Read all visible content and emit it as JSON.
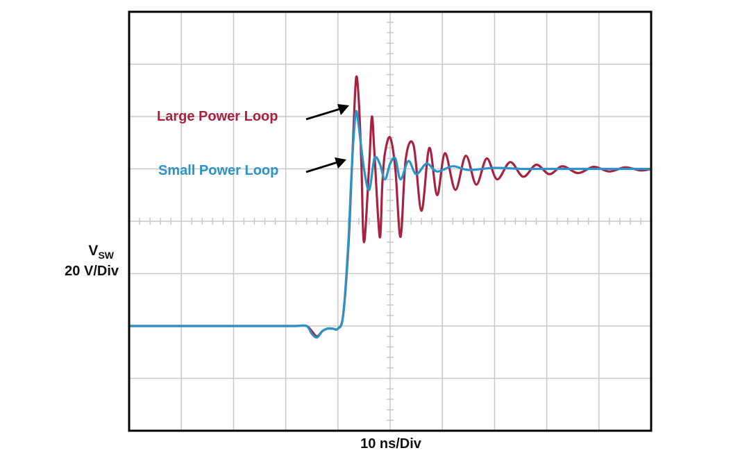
{
  "chart_data": {
    "type": "line",
    "xlabel": "10 ns/Div",
    "ylabel_main": "V",
    "ylabel_sub": "SW",
    "ylabel_scale": "20 V/Div",
    "grid": true,
    "x_divisions": 10,
    "y_divisions": 8,
    "x_unit": "div",
    "y_unit": "div",
    "xlim": [
      0,
      10
    ],
    "ylim": [
      -4,
      4
    ],
    "colors": {
      "large": "#a8223f",
      "small": "#2a93c8",
      "frame": "#000000",
      "grid": "#c8c8c8"
    },
    "series": [
      {
        "name": "Large Power Loop",
        "color": "#a8223f",
        "x": [
          0,
          0.5,
          1.0,
          1.5,
          2.0,
          2.5,
          3.0,
          3.2,
          3.4,
          3.5,
          3.6,
          3.7,
          3.8,
          3.9,
          4.0,
          4.1,
          4.2,
          4.25,
          4.3,
          4.35,
          4.4,
          4.45,
          4.5,
          4.6,
          4.65,
          4.7,
          4.8,
          4.85,
          4.9,
          5.0,
          5.1,
          5.2,
          5.3,
          5.45,
          5.6,
          5.75,
          5.9,
          6.05,
          6.25,
          6.45,
          6.65,
          6.85,
          7.05,
          7.3,
          7.55,
          7.8,
          8.05,
          8.3,
          8.6,
          8.9,
          9.2,
          9.5,
          9.8,
          10.0
        ],
        "y": [
          -2.0,
          -2.0,
          -2.0,
          -2.0,
          -2.0,
          -2.0,
          -2.0,
          -2.0,
          -2.0,
          -2.1,
          -2.2,
          -2.1,
          -2.05,
          -2.05,
          -2.05,
          -1.8,
          -0.5,
          0.6,
          1.8,
          2.75,
          2.3,
          1.1,
          -0.4,
          1.1,
          2.0,
          1.3,
          -0.3,
          0.7,
          1.3,
          1.6,
          1.0,
          -0.3,
          1.2,
          1.45,
          0.2,
          1.4,
          0.5,
          1.3,
          0.6,
          1.25,
          0.7,
          1.2,
          0.8,
          1.13,
          0.85,
          1.08,
          0.9,
          1.05,
          0.92,
          1.04,
          0.95,
          1.03,
          0.97,
          1.0
        ]
      },
      {
        "name": "Small Power Loop",
        "color": "#2a93c8",
        "x": [
          0,
          0.5,
          1.0,
          1.5,
          2.0,
          2.5,
          3.0,
          3.2,
          3.4,
          3.5,
          3.6,
          3.7,
          3.8,
          3.9,
          4.0,
          4.1,
          4.2,
          4.25,
          4.3,
          4.35,
          4.4,
          4.5,
          4.6,
          4.7,
          4.8,
          4.9,
          5.0,
          5.1,
          5.2,
          5.35,
          5.5,
          5.7,
          5.9,
          6.2,
          6.5,
          7.0,
          7.5,
          8.0,
          8.5,
          9.0,
          9.5,
          10.0
        ],
        "y": [
          -2.0,
          -2.0,
          -2.0,
          -2.0,
          -2.0,
          -2.0,
          -2.0,
          -2.0,
          -2.0,
          -2.15,
          -2.22,
          -2.1,
          -2.05,
          -2.05,
          -2.05,
          -1.8,
          -0.4,
          0.7,
          1.6,
          2.1,
          1.8,
          1.0,
          0.6,
          1.2,
          1.1,
          0.8,
          1.1,
          1.2,
          0.8,
          1.15,
          0.9,
          1.1,
          0.95,
          1.05,
          0.98,
          1.02,
          1.0,
          1.0,
          1.0,
          1.0,
          1.0,
          1.0
        ]
      }
    ]
  }
}
